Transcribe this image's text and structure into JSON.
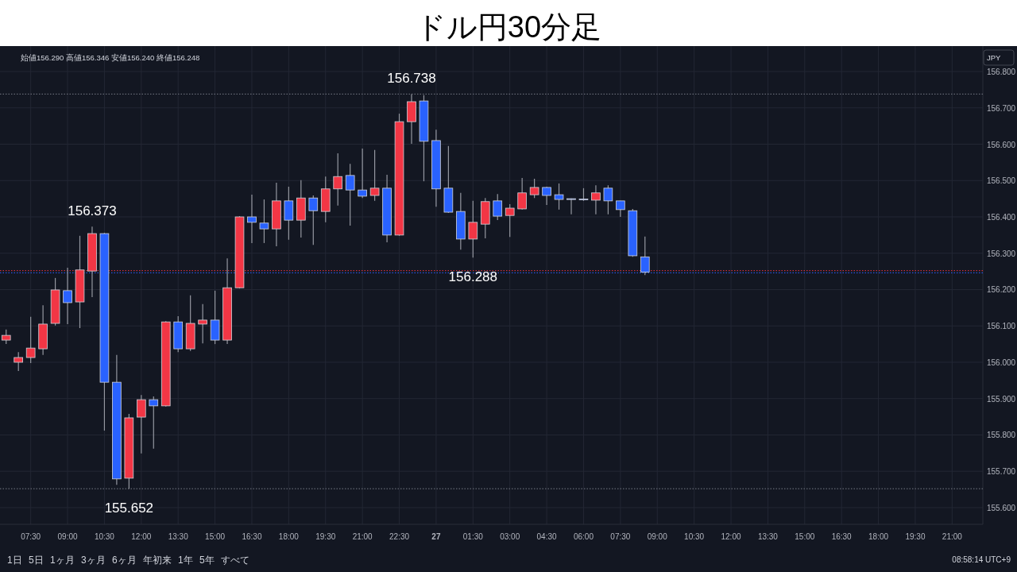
{
  "chart_data": {
    "type": "candlestick",
    "title": "ドル円30分足",
    "categories": [
      null,
      null,
      "07:30",
      null,
      null,
      "09:00",
      null,
      null,
      "10:30",
      null,
      null,
      "12:00",
      null,
      null,
      "13:30",
      null,
      null,
      "15:00",
      null,
      null,
      "16:30",
      null,
      null,
      "18:00",
      null,
      null,
      "19:30",
      null,
      null,
      "21:00",
      null,
      null,
      "22:30",
      null,
      null,
      "27",
      null,
      null,
      "01:30",
      null,
      null,
      "03:00",
      null,
      null,
      "04:30",
      null,
      null,
      "06:00",
      null,
      null,
      "07:30",
      null,
      null,
      "09:00",
      null,
      null,
      "10:30",
      null,
      null,
      "12:00",
      null,
      null,
      "13:30",
      null,
      null,
      "15:00",
      null,
      null,
      "16:30",
      null,
      null,
      "18:00",
      null,
      null,
      "19:30",
      null,
      null,
      "21:00",
      null,
      null
    ],
    "ohlc": [
      [
        156.061,
        156.09,
        156.05,
        156.074
      ],
      [
        156.0,
        156.028,
        155.976,
        156.013
      ],
      [
        156.013,
        156.125,
        155.998,
        156.039
      ],
      [
        156.037,
        156.157,
        156.02,
        156.105
      ],
      [
        156.107,
        156.232,
        156.101,
        156.199
      ],
      [
        156.197,
        156.26,
        156.105,
        156.164
      ],
      [
        156.166,
        156.348,
        156.094,
        156.254
      ],
      [
        156.251,
        156.373,
        156.179,
        156.354
      ],
      [
        156.354,
        156.356,
        155.812,
        155.945
      ],
      [
        155.945,
        156.02,
        155.663,
        155.679
      ],
      [
        155.681,
        155.858,
        155.652,
        155.847
      ],
      [
        155.849,
        155.91,
        155.749,
        155.897
      ],
      [
        155.897,
        155.906,
        155.762,
        155.88
      ],
      [
        155.88,
        156.113,
        155.878,
        156.111
      ],
      [
        156.111,
        156.127,
        156.028,
        156.037
      ],
      [
        156.037,
        156.184,
        156.031,
        156.107
      ],
      [
        156.105,
        156.16,
        156.052,
        156.116
      ],
      [
        156.116,
        156.197,
        156.05,
        156.061
      ],
      [
        156.061,
        156.286,
        156.05,
        156.205
      ],
      [
        156.205,
        156.402,
        156.203,
        156.4
      ],
      [
        156.4,
        156.461,
        156.328,
        156.385
      ],
      [
        156.383,
        156.448,
        156.328,
        156.367
      ],
      [
        156.367,
        156.494,
        156.319,
        156.444
      ],
      [
        156.444,
        156.483,
        156.337,
        156.391
      ],
      [
        156.391,
        156.501,
        156.343,
        156.452
      ],
      [
        156.452,
        156.459,
        156.323,
        156.417
      ],
      [
        156.415,
        156.511,
        156.385,
        156.477
      ],
      [
        156.477,
        156.575,
        156.431,
        156.511
      ],
      [
        156.514,
        156.546,
        156.376,
        156.474
      ],
      [
        156.474,
        156.588,
        156.452,
        156.457
      ],
      [
        156.459,
        156.584,
        156.444,
        156.479
      ],
      [
        156.479,
        156.516,
        156.33,
        156.35
      ],
      [
        156.35,
        156.684,
        156.348,
        156.662
      ],
      [
        156.662,
        156.738,
        156.601,
        156.717
      ],
      [
        156.719,
        156.735,
        156.498,
        156.608
      ],
      [
        156.61,
        156.64,
        156.428,
        156.477
      ],
      [
        156.479,
        156.595,
        156.411,
        156.413
      ],
      [
        156.415,
        156.466,
        156.31,
        156.339
      ],
      [
        156.339,
        156.444,
        156.288,
        156.385
      ],
      [
        156.38,
        156.452,
        156.341,
        156.442
      ],
      [
        156.444,
        156.463,
        156.391,
        156.402
      ],
      [
        156.404,
        156.435,
        156.345,
        156.424
      ],
      [
        156.422,
        156.507,
        156.42,
        156.466
      ],
      [
        156.461,
        156.505,
        156.452,
        156.481
      ],
      [
        156.481,
        156.483,
        156.433,
        156.459
      ],
      [
        156.461,
        156.492,
        156.42,
        156.448
      ],
      [
        156.45,
        156.451,
        156.407,
        156.449
      ],
      [
        156.449,
        156.479,
        156.444,
        156.448
      ],
      [
        156.446,
        156.487,
        156.407,
        156.466
      ],
      [
        156.479,
        156.487,
        156.407,
        156.444
      ],
      [
        156.444,
        156.444,
        156.4,
        156.42
      ],
      [
        156.417,
        156.422,
        156.29,
        156.293
      ],
      [
        156.29,
        156.346,
        156.24,
        156.248
      ],
      null,
      null,
      null,
      null,
      null,
      null,
      null,
      null,
      null,
      null,
      null,
      null,
      null,
      null,
      null,
      null,
      null,
      null,
      null,
      null,
      null,
      null,
      null,
      null,
      null,
      null,
      null
    ],
    "colors": [
      "#f23645",
      "#f23645",
      "#f23645",
      "#f23645",
      "#f23645",
      "#2962ff",
      "#f23645",
      "#f23645",
      "#2962ff",
      "#2962ff",
      "#f23645",
      "#f23645",
      "#2962ff",
      "#f23645",
      "#2962ff",
      "#f23645",
      "#f23645",
      "#2962ff",
      "#f23645",
      "#f23645",
      "#2962ff",
      "#2962ff",
      "#f23645",
      "#2962ff",
      "#f23645",
      "#2962ff",
      "#f23645",
      "#f23645",
      "#2962ff",
      "#2962ff",
      "#f23645",
      "#2962ff",
      "#f23645",
      "#f23645",
      "#2962ff",
      "#2962ff",
      "#2962ff",
      "#2962ff",
      "#f23645",
      "#f23645",
      "#2962ff",
      "#f23645",
      "#f23645",
      "#f23645",
      "#2962ff",
      "#2962ff",
      "#2962ff",
      "#2962ff",
      "#f23645",
      "#2962ff",
      "#2962ff",
      "#2962ff",
      "#2962ff",
      null,
      null,
      null,
      null,
      null,
      null,
      null,
      null,
      null,
      null,
      null,
      null,
      null,
      null,
      null,
      null,
      null,
      null,
      null,
      null,
      null,
      null,
      null,
      null,
      null,
      null,
      null
    ],
    "ylim": [
      155.554,
      156.87
    ],
    "yticks": [
      {
        "value": 155.6,
        "label": "155.600"
      },
      {
        "value": 155.7,
        "label": "155.700"
      },
      {
        "value": 155.8,
        "label": "155.800"
      },
      {
        "value": 155.9,
        "label": "155.900"
      },
      {
        "value": 156.0,
        "label": "156.000"
      },
      {
        "value": 156.1,
        "label": "156.100"
      },
      {
        "value": 156.2,
        "label": "156.200"
      },
      {
        "value": 156.3,
        "label": "156.300"
      },
      {
        "value": 156.4,
        "label": "156.400"
      },
      {
        "value": 156.5,
        "label": "156.500"
      },
      {
        "value": 156.6,
        "label": "156.600"
      },
      {
        "value": 156.7,
        "label": "156.700"
      },
      {
        "value": 156.8,
        "label": "156.800"
      }
    ],
    "grid": true,
    "ref_lines": [
      {
        "axis": "y",
        "value": 156.738,
        "color": "#787b86",
        "line_style": "dotted"
      },
      {
        "axis": "y",
        "value": 155.652,
        "color": "#787b86",
        "line_style": "dotted"
      },
      {
        "axis": "y",
        "value": 156.252,
        "color": "#f23645",
        "line_style": "dotted"
      },
      {
        "axis": "y",
        "value": 156.246,
        "color": "#2962ff",
        "line_style": "dotted"
      }
    ],
    "annotations": [
      {
        "text": "156.738",
        "y": 156.738
      },
      {
        "text": "156.373",
        "y": 156.373
      },
      {
        "text": "155.652",
        "y": 155.652
      },
      {
        "text": "156.288",
        "y": 156.288
      },
      "始値156.290 高値156.346 安値156.240 終値156.248",
      "JPY",
      "08:58:14 UTC+9",
      "1日",
      "5日",
      "1ヶ月",
      "3ヶ月",
      "6ヶ月",
      "年初来",
      "1年",
      "5年",
      "すべて"
    ]
  }
}
